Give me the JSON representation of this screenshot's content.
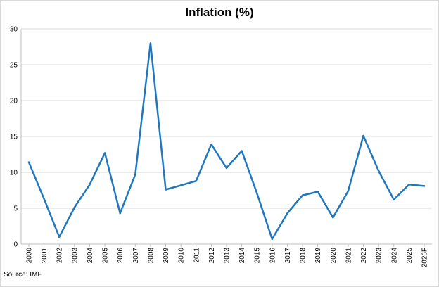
{
  "chart_data": {
    "type": "line",
    "title": "Inflation (%)",
    "source": "Source: IMF",
    "xlabel": "",
    "ylabel": "",
    "ylim": [
      0,
      30
    ],
    "yticks": [
      0,
      5,
      10,
      15,
      20,
      25,
      30
    ],
    "grid": true,
    "legend": "none",
    "line_color": "#1f77c0",
    "categories": [
      "2000",
      "2001",
      "2002",
      "2003",
      "2004",
      "2005",
      "2006",
      "2007",
      "2008",
      "2009",
      "2010",
      "2011",
      "2012",
      "2013",
      "2014",
      "2015",
      "2016",
      "2017",
      "2018",
      "2019",
      "2020",
      "2021",
      "2022",
      "2023",
      "2024",
      "2025",
      "2026F"
    ],
    "series": [
      {
        "values": [
          11.4,
          6.3,
          1.0,
          5.1,
          8.3,
          12.7,
          4.3,
          9.7,
          28.0,
          7.6,
          8.2,
          8.8,
          13.9,
          10.6,
          13.0,
          7.1,
          0.7,
          4.3,
          6.8,
          7.3,
          3.7,
          7.4,
          15.1,
          10.2,
          6.2,
          8.3,
          8.1
        ]
      }
    ]
  }
}
